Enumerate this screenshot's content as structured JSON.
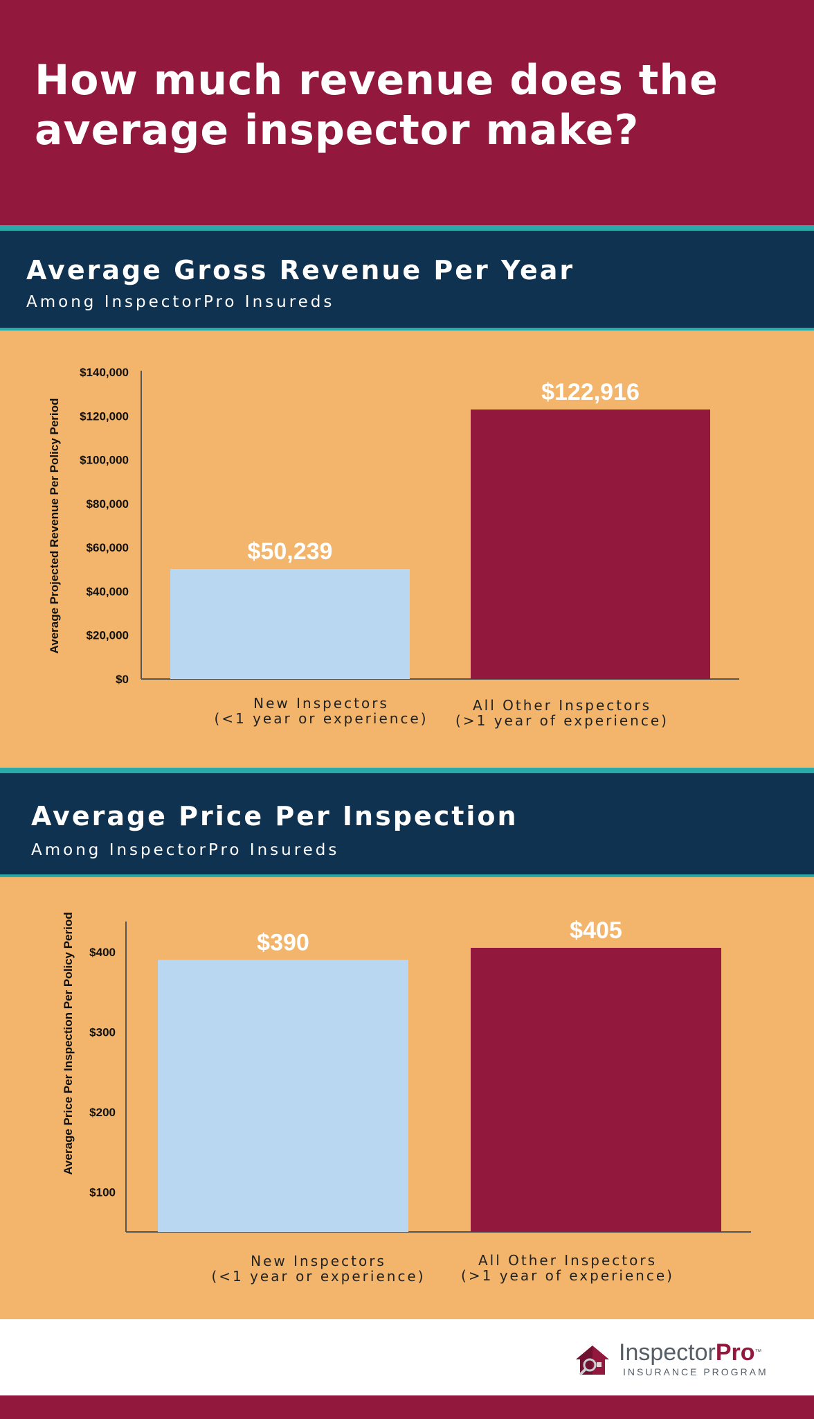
{
  "header": {
    "title_line1": "How much revenue does the",
    "title_line2": "average inspector make?"
  },
  "sections": [
    {
      "title": "Average Gross Revenue Per Year",
      "subtitle": "Among InspectorPro Insureds"
    },
    {
      "title": "Average Price Per Inspection",
      "subtitle": "Among InspectorPro Insureds"
    }
  ],
  "chart_data": [
    {
      "type": "bar",
      "categories": [
        [
          "New Inspectors",
          "(<1 year or experience)"
        ],
        [
          "All Other Inspectors",
          "(>1 year of experience)"
        ]
      ],
      "values": [
        50239,
        122916
      ],
      "value_labels": [
        "$50,239",
        "$122,916"
      ],
      "ylabel": "Average Projected Revenue Per Policy Period",
      "ylim": [
        0,
        140000
      ],
      "yticks": [
        0,
        20000,
        40000,
        60000,
        80000,
        100000,
        120000,
        140000
      ],
      "ytick_labels": [
        "$0",
        "$20,000",
        "$40,000",
        "$60,000",
        "$80,000",
        "$100,000",
        "$120,000",
        "$140,000"
      ],
      "colors": [
        "#bad7f2",
        "#92183d"
      ],
      "grid": false
    },
    {
      "type": "bar",
      "categories": [
        [
          "New Inspectors",
          "(<1 year or experience)"
        ],
        [
          "All Other Inspectors",
          "(>1 year of experience)"
        ]
      ],
      "values": [
        390,
        405
      ],
      "value_labels": [
        "$390",
        "$405"
      ],
      "ylabel": "Average Price Per Inspection Per Policy Period",
      "ylim": [
        50,
        450
      ],
      "yticks": [
        100,
        200,
        300,
        400
      ],
      "ytick_labels": [
        "$100",
        "$200",
        "$300",
        "$400"
      ],
      "colors": [
        "#bad7f2",
        "#92183d"
      ],
      "grid": false
    }
  ],
  "footer": {
    "logo_text_a": "Inspector",
    "logo_text_b": "Pro",
    "logo_tm": "™",
    "logo_subtitle": "INSURANCE PROGRAM",
    "logo_icon": "house-shield-icon"
  }
}
